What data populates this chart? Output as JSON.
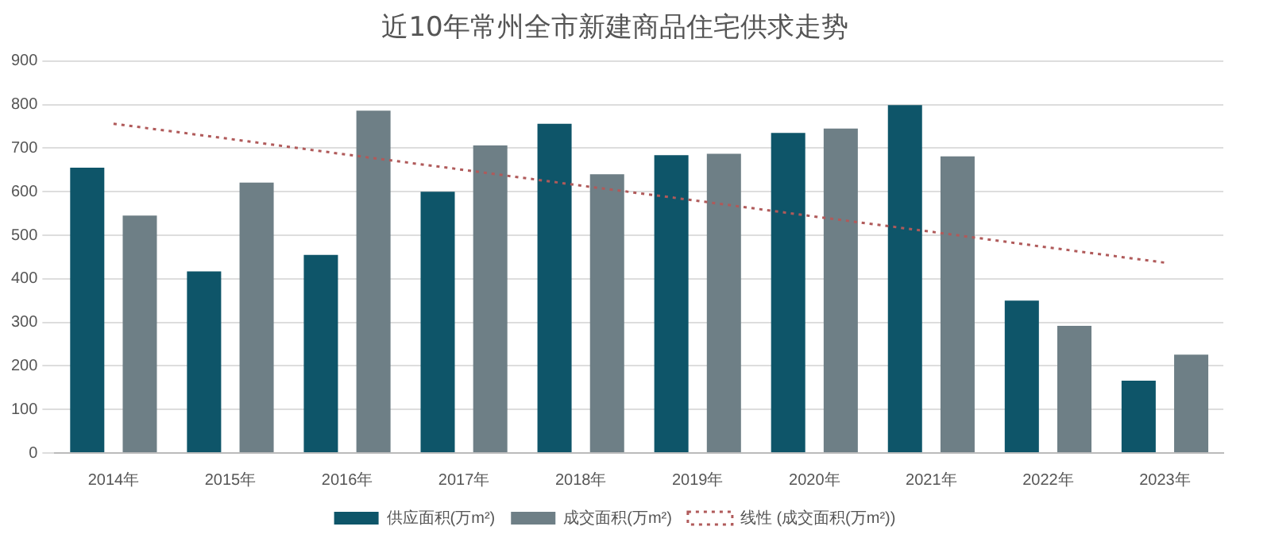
{
  "chart_data": {
    "type": "bar",
    "title": "近10年常州全市新建商品住宅供求走势",
    "categories": [
      "2014年",
      "2015年",
      "2016年",
      "2017年",
      "2018年",
      "2019年",
      "2020年",
      "2021年",
      "2022年",
      "2023年"
    ],
    "series": [
      {
        "name": "供应面积(万m²)",
        "color": "#0e5569",
        "values": [
          655,
          417,
          455,
          600,
          756,
          684,
          735,
          799,
          350,
          166
        ]
      },
      {
        "name": "成交面积(万m²)",
        "color": "#6e7f86",
        "values": [
          545,
          621,
          786,
          706,
          640,
          687,
          745,
          681,
          292,
          226
        ]
      },
      {
        "name": "线性 (成交面积(万m²))",
        "type": "line",
        "color": "#b05a5a",
        "line_style": "dotted",
        "marker": "none",
        "values": [
          756,
          721,
          685,
          650,
          614,
          579,
          543,
          508,
          472,
          437
        ]
      }
    ],
    "ylim": [
      0,
      900
    ],
    "yticks": [
      0,
      100,
      200,
      300,
      400,
      500,
      600,
      700,
      800,
      900
    ],
    "grid": "y",
    "legend": "bottom"
  }
}
